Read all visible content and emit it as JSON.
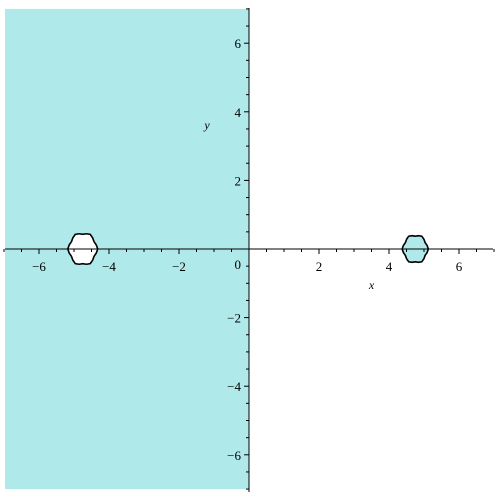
{
  "chart_data": {
    "type": "area",
    "title": "",
    "xlabel": "x",
    "ylabel": "y",
    "xlim": [
      -7,
      7
    ],
    "ylim": [
      -7,
      7
    ],
    "x_ticks": [
      -6,
      -4,
      -2,
      2,
      4,
      6
    ],
    "y_ticks": [
      -6,
      -4,
      -2,
      2,
      4,
      6
    ],
    "x_tick_labels": [
      "−6",
      "−4",
      "−2",
      "2",
      "4",
      "6"
    ],
    "y_tick_labels": [
      "−6",
      "−4",
      "−2",
      "2",
      "4",
      "6"
    ],
    "origin_label": "0",
    "grid": false,
    "fill_color": "#b0e9e9",
    "outline_color": "#000000",
    "regions": [
      {
        "name": "",
        "shape": "half-plane",
        "x_min": -7,
        "x_max": 0,
        "y_min": -7,
        "y_max": 7
      },
      {
        "name": "",
        "shape": "hole",
        "center": [
          -4.75,
          0
        ],
        "radius": 0.4
      },
      {
        "name": "",
        "shape": "blob",
        "center": [
          4.75,
          0
        ],
        "radius": 0.35
      }
    ]
  }
}
